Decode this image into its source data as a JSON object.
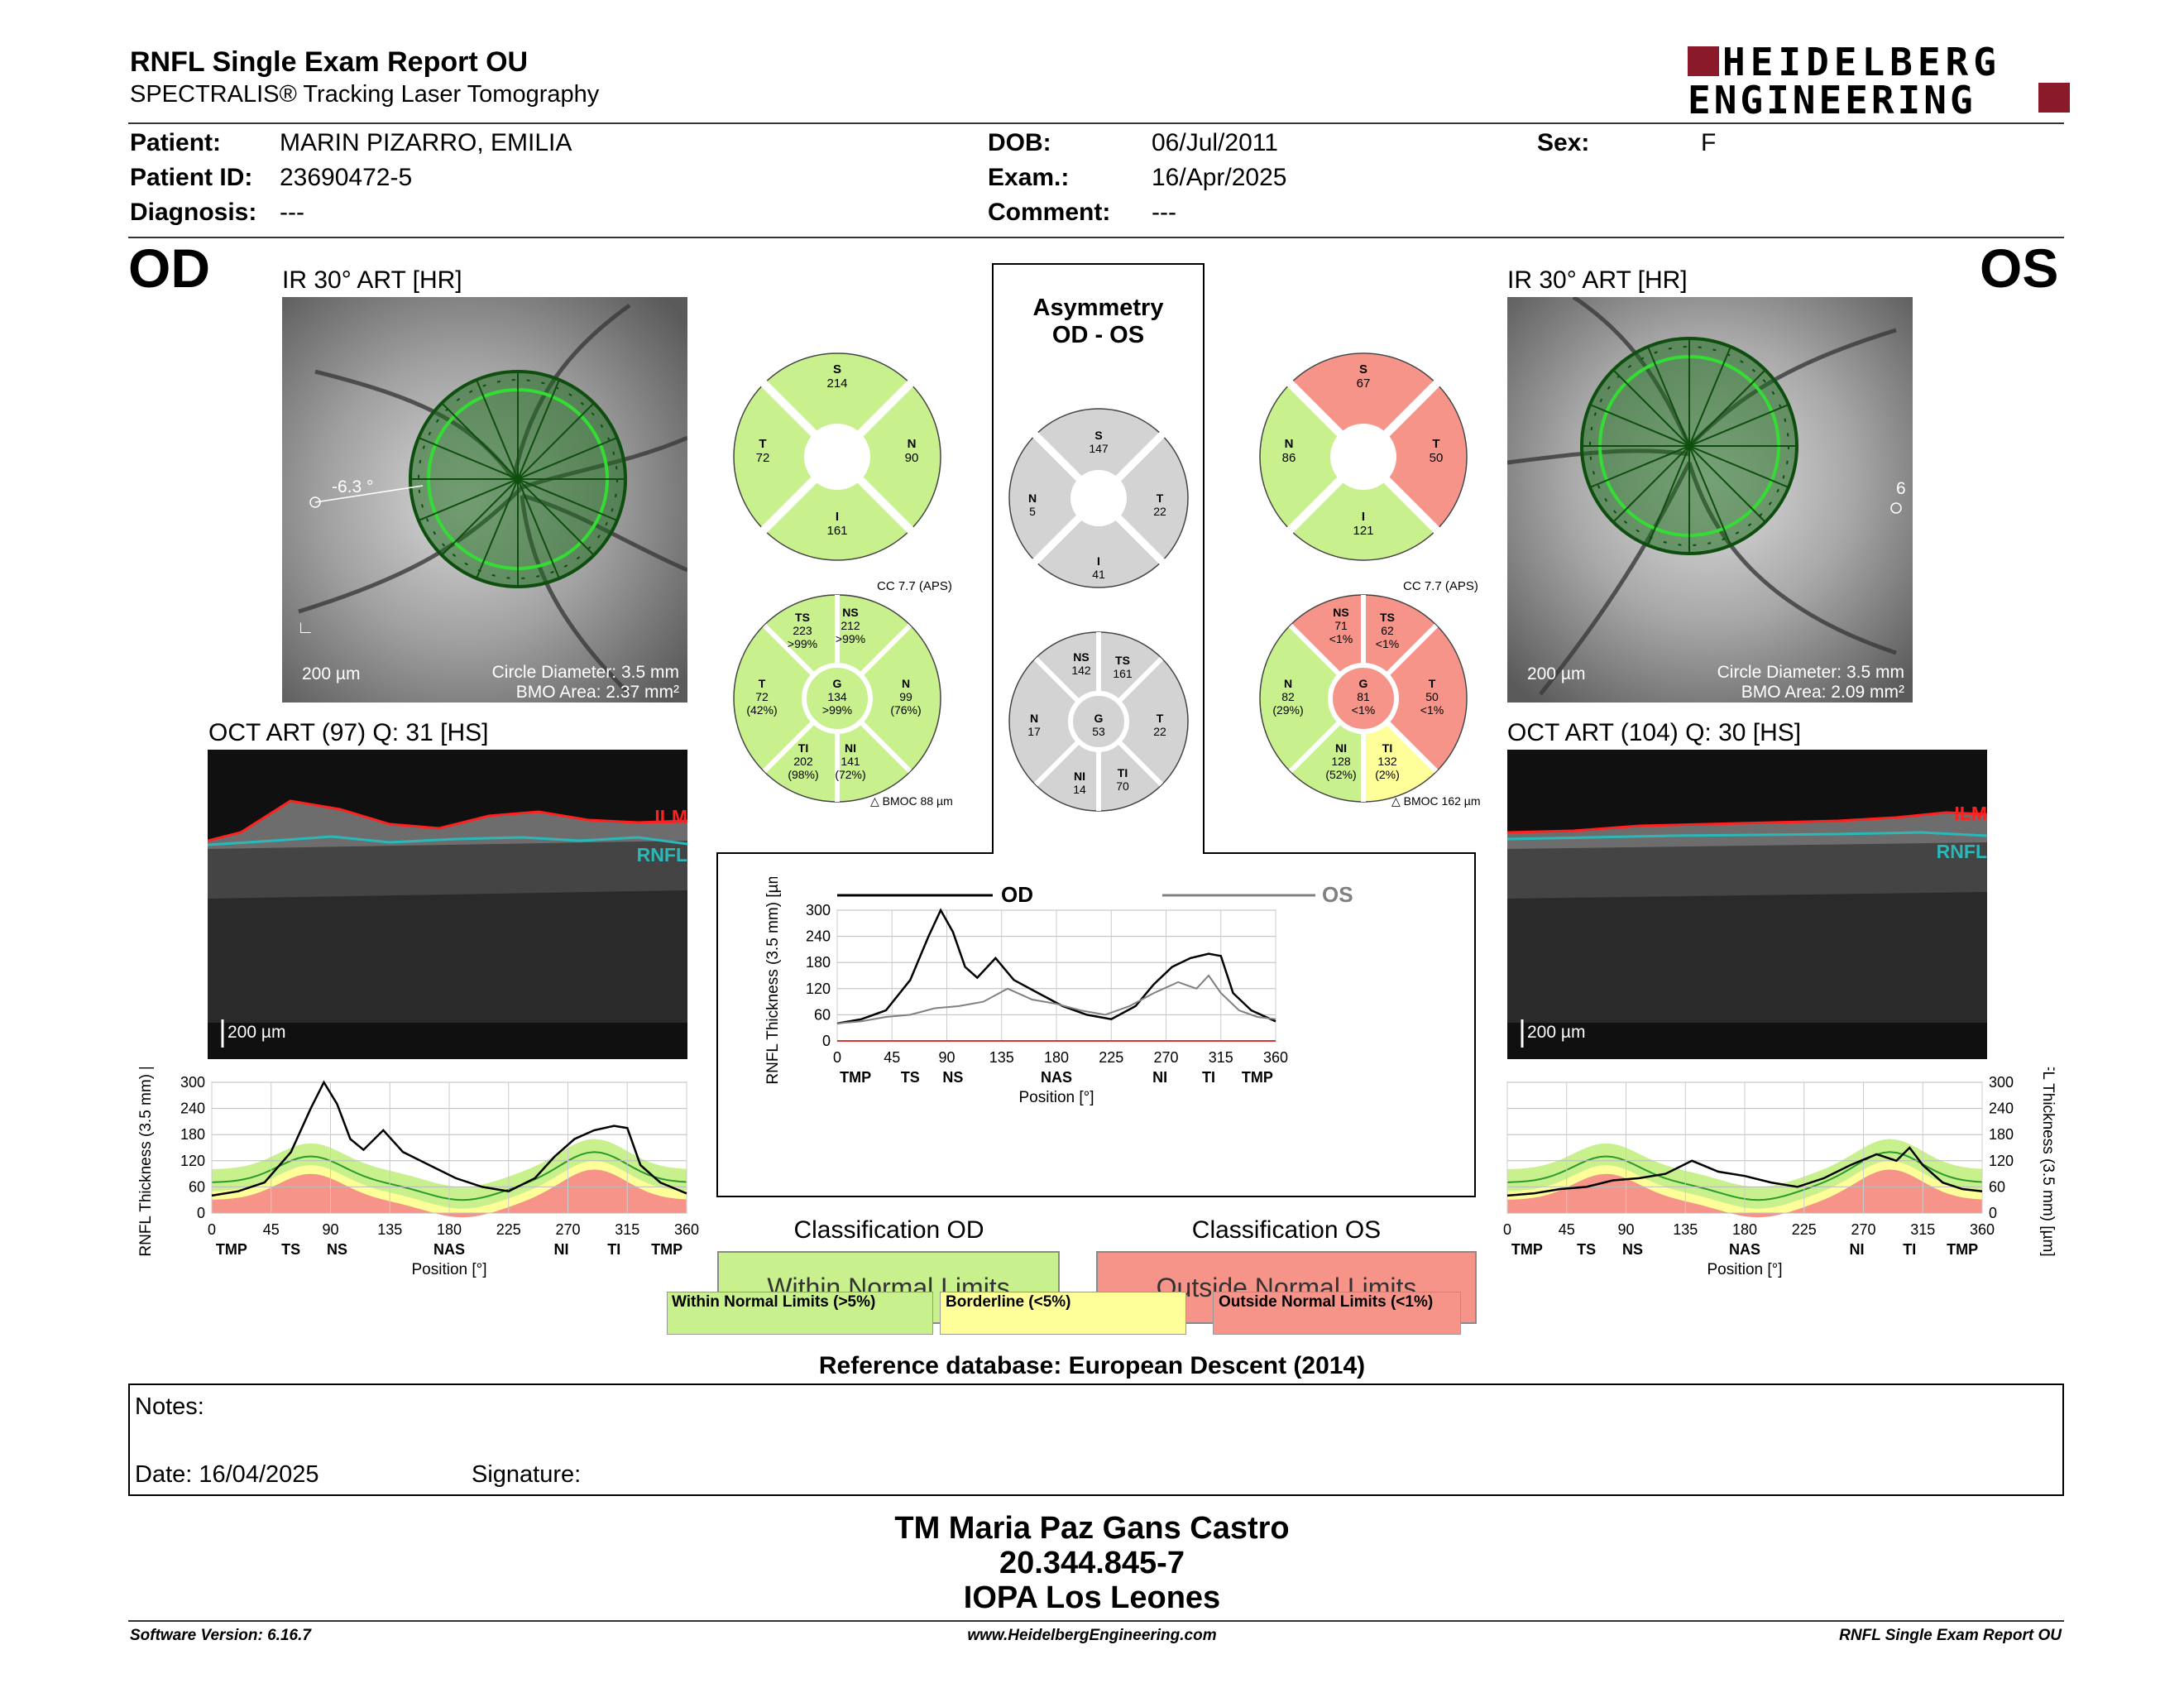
{
  "header": {
    "title": "RNFL Single Exam Report OU",
    "subtitle": "SPECTRALIS® Tracking Laser Tomography",
    "logo_line1": "HEIDELBERG",
    "logo_line2": "ENGINEERING"
  },
  "patient": {
    "patient_label": "Patient:",
    "patient": "MARIN PIZARRO, EMILIA",
    "id_label": "Patient ID:",
    "id": "23690472-5",
    "diagnosis_label": "Diagnosis:",
    "diagnosis": "---",
    "dob_label": "DOB:",
    "dob": "06/Jul/2011",
    "exam_label": "Exam.:",
    "exam": "16/Apr/2025",
    "comment_label": "Comment:",
    "comment": "---",
    "sex_label": "Sex:",
    "sex": "F"
  },
  "od": {
    "eye": "OD",
    "ir_caption": "IR 30° ART [HR]",
    "angle": "-6.3 °",
    "scale": "200 µm",
    "circle_diameter": "Circle Diameter: 3.5 mm",
    "bmo_area": "BMO Area: 2.37 mm²",
    "oct_caption": "OCT ART (97) Q: 31 [HS]",
    "oct_scale": "200 µm",
    "ilm": "ILM",
    "rnfl": "RNFL",
    "sectors4": {
      "S": "214",
      "T": "72",
      "N": "90",
      "I": "161"
    },
    "cc": "CC 7.7 (APS)",
    "bmoc": "BMOC 88 µm",
    "sectors6": {
      "TS": [
        "223",
        ">99%"
      ],
      "NS": [
        "212",
        ">99%"
      ],
      "T": [
        "72",
        "(42%)"
      ],
      "G": [
        "134",
        ">99%"
      ],
      "N": [
        "99",
        "(76%)"
      ],
      "TI": [
        "202",
        "(98%)"
      ],
      "NI": [
        "141",
        "(72%)"
      ]
    }
  },
  "os": {
    "eye": "OS",
    "ir_caption": "IR 30° ART [HR]",
    "angle": "6",
    "scale": "200 µm",
    "circle_diameter": "Circle Diameter: 3.5 mm",
    "bmo_area": "BMO Area: 2.09 mm²",
    "oct_caption": "OCT ART (104) Q: 30 [HS]",
    "oct_scale": "200 µm",
    "ilm": "ILM",
    "rnfl": "RNFL",
    "sectors4": {
      "S": "67",
      "N": "86",
      "T": "50",
      "I": "121"
    },
    "cc": "CC 7.7 (APS)",
    "bmoc": "BMOC 162 µm",
    "sectors6": {
      "NS": [
        "71",
        "<1%"
      ],
      "TS": [
        "62",
        "<1%"
      ],
      "N": [
        "82",
        "(29%)"
      ],
      "G": [
        "81",
        "<1%"
      ],
      "T": [
        "50",
        "<1%"
      ],
      "NI": [
        "128",
        "(52%)"
      ],
      "TI": [
        "132",
        "(2%)"
      ]
    }
  },
  "asymmetry": {
    "title1": "Asymmetry",
    "title2": "OD - OS",
    "sectors4": {
      "S": "147",
      "N": "5",
      "T": "22",
      "I": "41"
    },
    "sectors6": {
      "NS": "142",
      "TS": "161",
      "N": "17",
      "G": "53",
      "T": "22",
      "NI": "14",
      "TI": "70"
    }
  },
  "chart_common": {
    "ylabel": "RNFL Thickness (3.5 mm) [µm]",
    "xlabel": "Position [°]",
    "x_ticks": [
      "0",
      "45",
      "90",
      "135",
      "180",
      "225",
      "270",
      "315",
      "360"
    ],
    "y_ticks": [
      "0",
      "60",
      "120",
      "180",
      "240",
      "300"
    ],
    "regions_od": [
      "TMP",
      "TS",
      "NS",
      "NAS",
      "NI",
      "TI",
      "TMP"
    ]
  },
  "legend": {
    "od_label": "OD",
    "os_label": "OS",
    "classification_od_title": "Classification OD",
    "classification_od": "Within Normal Limits",
    "classification_os_title": "Classification OS",
    "classification_os": "Outside Normal Limits",
    "wnl": "Within Normal Limits (>5%)",
    "bl": "Borderline (<5%)",
    "onl": "Outside Normal Limits (<1%)",
    "reference": "Reference database: European Descent (2014)"
  },
  "colors": {
    "green": "#c8f08c",
    "yellow": "#ffff9a",
    "red": "#f7948a",
    "gray": "#d3d3d3",
    "logo_red": "#8a1a2a"
  },
  "notes": {
    "notes_label": "Notes:",
    "date_label": "Date: 16/04/2025",
    "signature_label": "Signature:"
  },
  "signature": {
    "name": "TM Maria Paz Gans Castro",
    "rut": "20.344.845-7",
    "place": "IOPA Los Leones"
  },
  "footer": {
    "software": "Software Version: 6.16.7",
    "url": "www.HeidelbergEngineering.com",
    "report": "RNFL Single Exam Report OU"
  },
  "chart_data": [
    {
      "type": "line",
      "title": "",
      "ylabel": "RNFL Thickness (3.5 mm) [µm]",
      "xlabel": "Position [°]",
      "xlim": [
        0,
        360
      ],
      "ylim": [
        0,
        300
      ],
      "series": [
        {
          "name": "OD",
          "x": [
            0,
            20,
            40,
            60,
            75,
            85,
            95,
            105,
            115,
            130,
            145,
            165,
            185,
            205,
            225,
            245,
            260,
            275,
            290,
            305,
            315,
            325,
            340,
            360
          ],
          "values": [
            40,
            50,
            70,
            140,
            240,
            300,
            250,
            170,
            145,
            190,
            140,
            110,
            80,
            60,
            50,
            80,
            130,
            170,
            190,
            200,
            195,
            110,
            70,
            45
          ]
        },
        {
          "name": "OS",
          "x": [
            0,
            20,
            40,
            60,
            80,
            100,
            120,
            140,
            160,
            180,
            200,
            220,
            240,
            260,
            280,
            295,
            305,
            315,
            330,
            345,
            360
          ],
          "values": [
            40,
            45,
            55,
            60,
            75,
            80,
            90,
            120,
            95,
            85,
            70,
            60,
            80,
            110,
            135,
            120,
            150,
            110,
            70,
            55,
            50
          ]
        }
      ]
    },
    {
      "type": "area",
      "title": "",
      "ylabel": "RNFL Thickness (3.5 mm) [µm]",
      "xlabel": "Position [°]",
      "xlim": [
        0,
        360
      ],
      "ylim": [
        0,
        300
      ],
      "series": [
        {
          "name": "OD",
          "x": [
            0,
            20,
            40,
            60,
            75,
            85,
            95,
            105,
            115,
            130,
            145,
            165,
            185,
            205,
            225,
            245,
            260,
            275,
            290,
            305,
            315,
            325,
            340,
            360
          ],
          "values": [
            40,
            50,
            70,
            140,
            240,
            300,
            250,
            170,
            145,
            190,
            140,
            110,
            80,
            60,
            50,
            80,
            130,
            170,
            190,
            200,
            195,
            110,
            70,
            45
          ]
        }
      ]
    },
    {
      "type": "area",
      "title": "",
      "ylabel": "RNFL Thickness (3.5 mm) [µm]",
      "xlabel": "Position [°]",
      "xlim": [
        0,
        360
      ],
      "ylim": [
        0,
        300
      ],
      "series": [
        {
          "name": "OS",
          "x": [
            0,
            20,
            40,
            60,
            80,
            100,
            120,
            140,
            160,
            180,
            200,
            220,
            240,
            260,
            280,
            295,
            305,
            315,
            330,
            345,
            360
          ],
          "values": [
            40,
            45,
            55,
            60,
            75,
            80,
            90,
            120,
            95,
            85,
            70,
            60,
            80,
            110,
            135,
            120,
            150,
            110,
            70,
            55,
            50
          ]
        }
      ]
    }
  ]
}
